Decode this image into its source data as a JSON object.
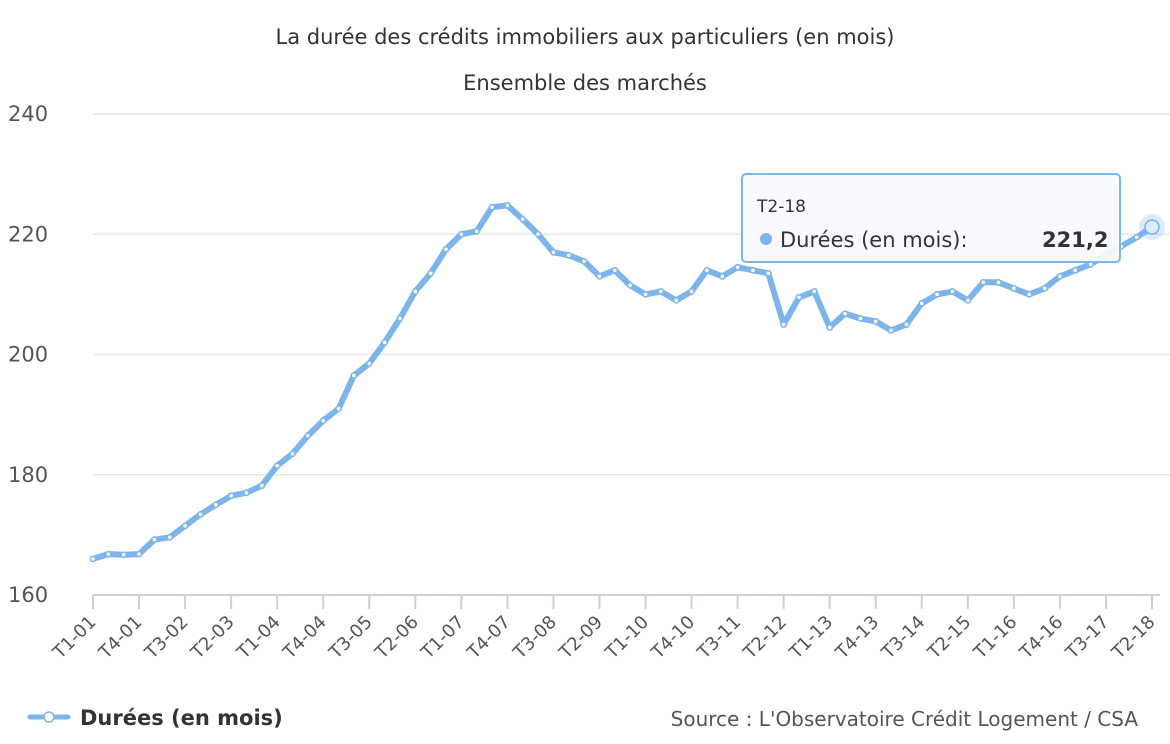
{
  "chart_data": {
    "type": "line",
    "title": "La durée des crédits immobiliers aux particuliers (en mois)",
    "subtitle": "Ensemble des marchés",
    "xlabel": "",
    "ylabel": "",
    "ylim": [
      160,
      240
    ],
    "yticks": [
      160,
      180,
      200,
      220,
      240
    ],
    "grid": true,
    "legend_position": "bottom-left",
    "tick_labels": [
      "T1-01",
      "T4-01",
      "T3-02",
      "T2-03",
      "T1-04",
      "T4-04",
      "T3-05",
      "T2-06",
      "T1-07",
      "T4-07",
      "T3-08",
      "T2-09",
      "T1-10",
      "T4-10",
      "T3-11",
      "T2-12",
      "T1-13",
      "T4-13",
      "T3-14",
      "T2-15",
      "T1-16",
      "T4-16",
      "T3-17",
      "T2-18"
    ],
    "x": [
      "T1-01",
      "T2-01",
      "T3-01",
      "T4-01",
      "T1-02",
      "T2-02",
      "T3-02",
      "T4-02",
      "T1-03",
      "T2-03",
      "T3-03",
      "T4-03",
      "T1-04",
      "T2-04",
      "T3-04",
      "T4-04",
      "T1-05",
      "T2-05",
      "T3-05",
      "T4-05",
      "T1-06",
      "T2-06",
      "T3-06",
      "T4-06",
      "T1-07",
      "T2-07",
      "T3-07",
      "T4-07",
      "T1-08",
      "T2-08",
      "T3-08",
      "T4-08",
      "T1-09",
      "T2-09",
      "T3-09",
      "T4-09",
      "T1-10",
      "T2-10",
      "T3-10",
      "T4-10",
      "T1-11",
      "T2-11",
      "T3-11",
      "T4-11",
      "T1-12",
      "T2-12",
      "T3-12",
      "T4-12",
      "T1-13",
      "T2-13",
      "T3-13",
      "T4-13",
      "T1-14",
      "T2-14",
      "T3-14",
      "T4-14",
      "T1-15",
      "T2-15",
      "T3-15",
      "T4-15",
      "T1-16",
      "T2-16",
      "T3-16",
      "T4-16",
      "T1-17",
      "T2-17",
      "T3-17",
      "T4-17",
      "T1-18",
      "T2-18"
    ],
    "series": [
      {
        "name": "Durées (en mois)",
        "color": "#7cb5ec",
        "values": [
          166.0,
          166.8,
          166.7,
          166.8,
          169.2,
          169.6,
          171.5,
          173.4,
          175.0,
          176.5,
          177.0,
          178.2,
          181.5,
          183.5,
          186.5,
          189.0,
          191.0,
          196.5,
          198.5,
          202.0,
          206.0,
          210.5,
          213.5,
          217.5,
          220.0,
          220.5,
          224.5,
          224.8,
          222.5,
          220.0,
          217.0,
          216.5,
          215.5,
          213.0,
          214.0,
          211.5,
          210.0,
          210.5,
          209.0,
          210.5,
          214.0,
          213.0,
          214.5,
          214.0,
          213.5,
          205.0,
          209.5,
          210.5,
          204.5,
          206.8,
          206.0,
          205.5,
          204.0,
          205.0,
          208.5,
          210.0,
          210.5,
          209.0,
          212.0,
          212.0,
          211.0,
          210.0,
          211.0,
          213.0,
          214.0,
          215.0,
          216.5,
          218.0,
          219.5,
          221.2
        ]
      }
    ],
    "tooltip": {
      "category": "T2-18",
      "series_name": "Durées (en mois)",
      "value_text": "221,2"
    },
    "source": "Source : L'Observatoire Crédit Logement / CSA"
  }
}
